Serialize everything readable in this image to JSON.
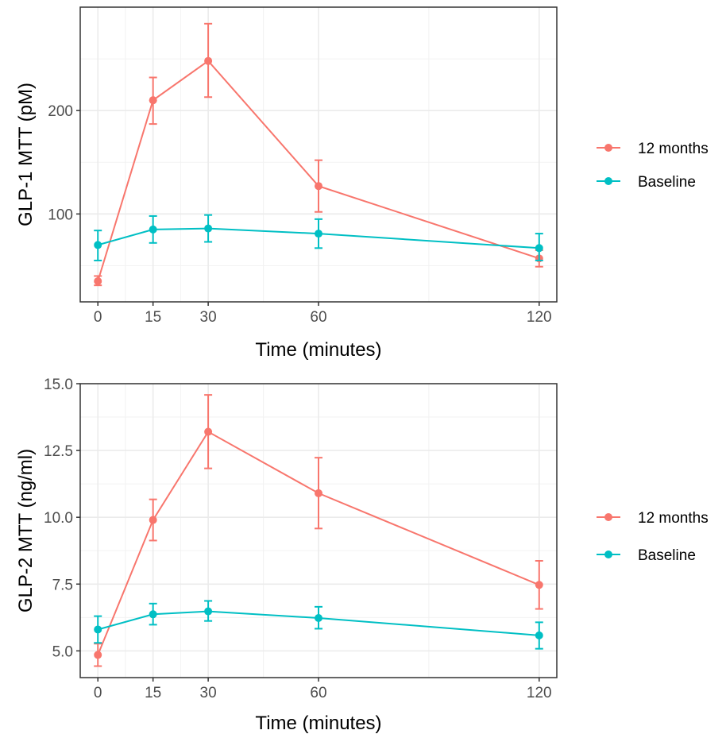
{
  "chart_data": [
    {
      "type": "line",
      "xlabel": "Time (minutes)",
      "ylabel": "GLP-1 MTT (pM)",
      "xlim": [
        -4.8,
        124.8
      ],
      "ylim": [
        15,
        300
      ],
      "x_ticks": [
        0,
        15,
        30,
        60,
        120
      ],
      "y_ticks": [
        100,
        200
      ],
      "y_tick_labels": [
        "100",
        "200"
      ],
      "y_minor_ticks": [
        50,
        150,
        250
      ],
      "x_minor_ticks": [
        7.5,
        22.5,
        45,
        90
      ],
      "grid": true,
      "legend_position": "right",
      "series": [
        {
          "name": "12 months",
          "color": "#F8766D",
          "x": [
            0,
            15,
            30,
            60,
            120
          ],
          "y": [
            35,
            210,
            248,
            127,
            57
          ],
          "err_low": [
            31,
            187,
            213,
            102,
            49
          ],
          "err_high": [
            40,
            232,
            284,
            152,
            65
          ]
        },
        {
          "name": "Baseline",
          "color": "#00BFC4",
          "x": [
            0,
            15,
            30,
            60,
            120
          ],
          "y": [
            70,
            85,
            86,
            81,
            67
          ],
          "err_low": [
            55,
            72,
            73,
            67,
            55
          ],
          "err_high": [
            84,
            98,
            99,
            95,
            81
          ]
        }
      ]
    },
    {
      "type": "line",
      "xlabel": "Time (minutes)",
      "ylabel": "GLP-2 MTT (ng/ml)",
      "xlim": [
        -4.8,
        124.8
      ],
      "ylim": [
        4.0,
        15.0
      ],
      "x_ticks": [
        0,
        15,
        30,
        60,
        120
      ],
      "y_ticks": [
        5.0,
        7.5,
        10.0,
        12.5,
        15.0
      ],
      "y_tick_labels": [
        "5.0",
        "7.5",
        "10.0",
        "12.5",
        "15.0"
      ],
      "y_minor_ticks": [
        6.25,
        8.75,
        11.25,
        13.75
      ],
      "x_minor_ticks": [
        7.5,
        22.5,
        45,
        90
      ],
      "grid": true,
      "legend_position": "right",
      "series": [
        {
          "name": "12 months",
          "color": "#F8766D",
          "x": [
            0,
            15,
            30,
            60,
            120
          ],
          "y": [
            4.85,
            9.9,
            13.2,
            10.9,
            7.47
          ],
          "err_low": [
            4.43,
            9.13,
            11.83,
            9.58,
            6.57
          ],
          "err_high": [
            5.27,
            10.67,
            14.58,
            12.23,
            8.37
          ]
        },
        {
          "name": "Baseline",
          "color": "#00BFC4",
          "x": [
            0,
            15,
            30,
            60,
            120
          ],
          "y": [
            5.8,
            6.37,
            6.48,
            6.23,
            5.58
          ],
          "err_low": [
            5.3,
            5.98,
            6.12,
            5.83,
            5.08
          ],
          "err_high": [
            6.3,
            6.77,
            6.87,
            6.65,
            6.07
          ]
        }
      ]
    }
  ]
}
